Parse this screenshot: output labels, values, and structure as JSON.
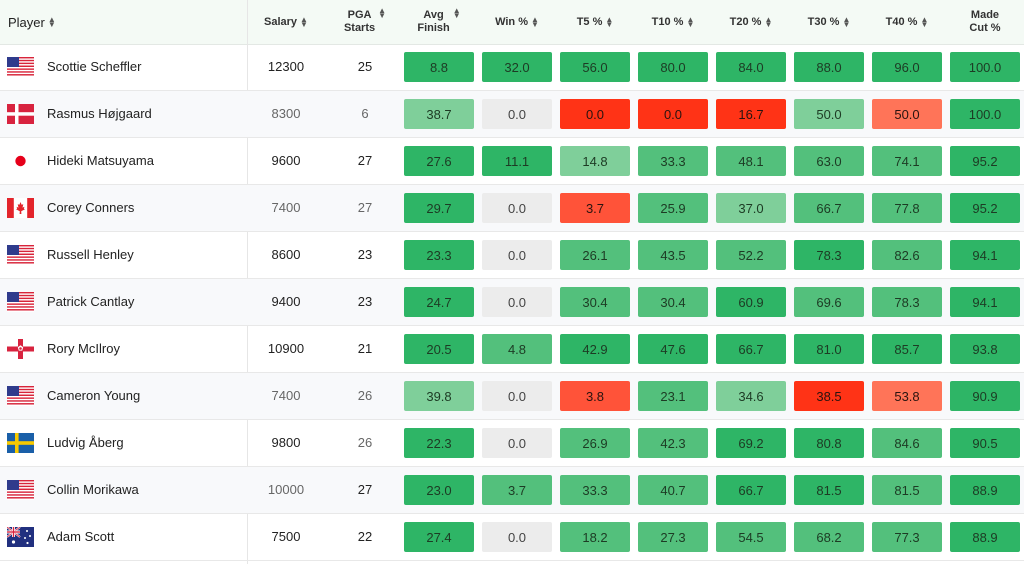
{
  "header": {
    "player": "Player",
    "salary": "Salary",
    "pga_starts_line1": "PGA",
    "pga_starts_line2": "Starts",
    "avg_finish_line1": "Avg",
    "avg_finish_line2": "Finish",
    "win": "Win %",
    "t5": "T5 %",
    "t10": "T10 %",
    "t20": "T20 %",
    "t30": "T30 %",
    "t40": "T40 %",
    "made_cut_line1": "Made",
    "made_cut_line2": "Cut %"
  },
  "colors": {
    "strong_green": "#2eb566",
    "mid_green": "#53c07c",
    "light_green": "#7fcf9a",
    "neutral": "#ececec",
    "strong_red": "#ff3316",
    "mid_red": "#ff5339",
    "light_red": "#ff7458"
  },
  "rows": [
    {
      "flag": "usa",
      "name": "Scottie Scheffler",
      "salary": "12300",
      "starts": "25",
      "avg_finish": "8.8",
      "win": "32.0",
      "t5": "56.0",
      "t10": "80.0",
      "t20": "84.0",
      "t30": "88.0",
      "t40": "96.0",
      "made_cut": "100.0"
    },
    {
      "flag": "denmark",
      "name": "Rasmus Højgaard",
      "salary": "8300",
      "starts": "6",
      "avg_finish": "38.7",
      "win": "0.0",
      "t5": "0.0",
      "t10": "0.0",
      "t20": "16.7",
      "t30": "50.0",
      "t40": "50.0",
      "made_cut": "100.0"
    },
    {
      "flag": "japan",
      "name": "Hideki Matsuyama",
      "salary": "9600",
      "starts": "27",
      "avg_finish": "27.6",
      "win": "11.1",
      "t5": "14.8",
      "t10": "33.3",
      "t20": "48.1",
      "t30": "63.0",
      "t40": "74.1",
      "made_cut": "95.2"
    },
    {
      "flag": "canada",
      "name": "Corey Conners",
      "salary": "7400",
      "starts": "27",
      "avg_finish": "29.7",
      "win": "0.0",
      "t5": "3.7",
      "t10": "25.9",
      "t20": "37.0",
      "t30": "66.7",
      "t40": "77.8",
      "made_cut": "95.2"
    },
    {
      "flag": "usa",
      "name": "Russell Henley",
      "salary": "8600",
      "starts": "23",
      "avg_finish": "23.3",
      "win": "0.0",
      "t5": "26.1",
      "t10": "43.5",
      "t20": "52.2",
      "t30": "78.3",
      "t40": "82.6",
      "made_cut": "94.1"
    },
    {
      "flag": "usa",
      "name": "Patrick Cantlay",
      "salary": "9400",
      "starts": "23",
      "avg_finish": "24.7",
      "win": "0.0",
      "t5": "30.4",
      "t10": "30.4",
      "t20": "60.9",
      "t30": "69.6",
      "t40": "78.3",
      "made_cut": "94.1"
    },
    {
      "flag": "northern-ireland",
      "name": "Rory McIlroy",
      "salary": "10900",
      "starts": "21",
      "avg_finish": "20.5",
      "win": "4.8",
      "t5": "42.9",
      "t10": "47.6",
      "t20": "66.7",
      "t30": "81.0",
      "t40": "85.7",
      "made_cut": "93.8"
    },
    {
      "flag": "usa",
      "name": "Cameron Young",
      "salary": "7400",
      "starts": "26",
      "avg_finish": "39.8",
      "win": "0.0",
      "t5": "3.8",
      "t10": "23.1",
      "t20": "34.6",
      "t30": "38.5",
      "t40": "53.8",
      "made_cut": "90.9"
    },
    {
      "flag": "sweden",
      "name": "Ludvig Åberg",
      "salary": "9800",
      "starts": "26",
      "avg_finish": "22.3",
      "win": "0.0",
      "t5": "26.9",
      "t10": "42.3",
      "t20": "69.2",
      "t30": "80.8",
      "t40": "84.6",
      "made_cut": "90.5"
    },
    {
      "flag": "usa",
      "name": "Collin Morikawa",
      "salary": "10000",
      "starts": "27",
      "avg_finish": "23.0",
      "win": "3.7",
      "t5": "33.3",
      "t10": "40.7",
      "t20": "66.7",
      "t30": "81.5",
      "t40": "81.5",
      "made_cut": "88.9"
    },
    {
      "flag": "australia",
      "name": "Adam Scott",
      "salary": "7500",
      "starts": "22",
      "avg_finish": "27.4",
      "win": "0.0",
      "t5": "18.2",
      "t10": "27.3",
      "t20": "54.5",
      "t30": "68.2",
      "t40": "77.3",
      "made_cut": "88.9"
    }
  ]
}
